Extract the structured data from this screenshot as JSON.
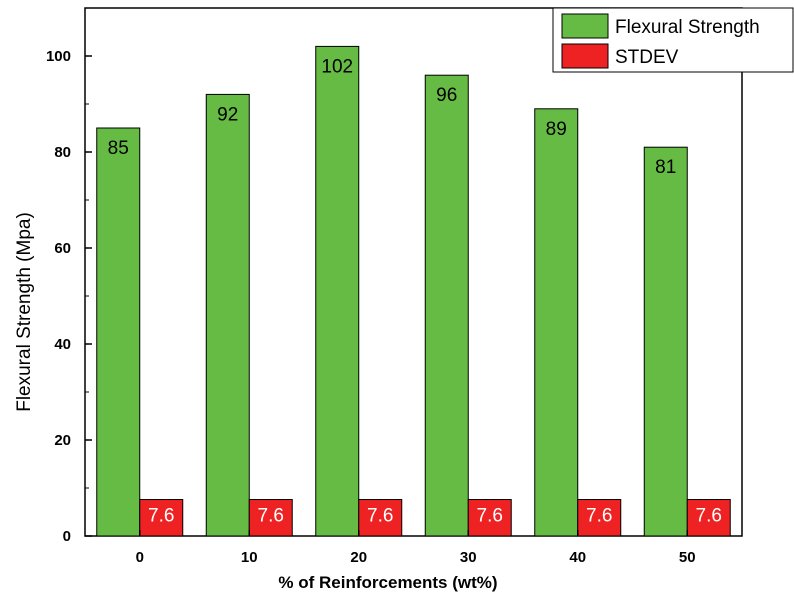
{
  "chart_data": {
    "type": "bar",
    "xlabel": "% of Reinforcements (wt%)",
    "ylabel": "Flexural Strength (Mpa)",
    "categories": [
      "0",
      "10",
      "20",
      "30",
      "40",
      "50"
    ],
    "ylim": [
      0,
      110
    ],
    "yticks": [
      0,
      20,
      40,
      60,
      80,
      100
    ],
    "grid": false,
    "legend_position": "top-right",
    "series": [
      {
        "name": "Flexural Strength",
        "color": "#66bb44",
        "values": [
          85,
          92,
          102,
          96,
          89,
          81
        ],
        "labels": [
          "85",
          "92",
          "102",
          "96",
          "89",
          "81"
        ]
      },
      {
        "name": "STDEV",
        "color": "#ee2222",
        "values": [
          7.6,
          7.6,
          7.6,
          7.6,
          7.6,
          7.6
        ],
        "labels": [
          "7.6",
          "7.6",
          "7.6",
          "7.6",
          "7.6",
          "7.6"
        ]
      }
    ]
  }
}
